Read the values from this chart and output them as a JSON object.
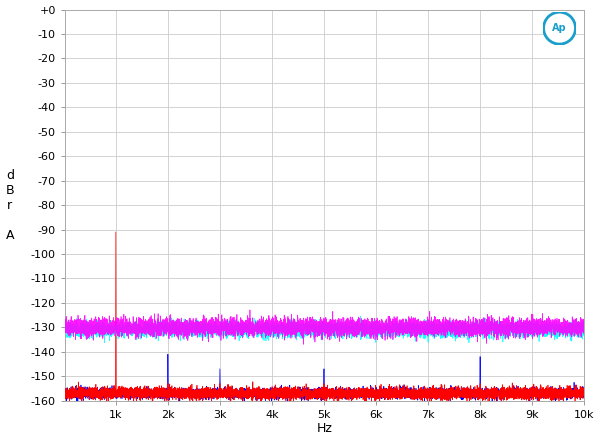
{
  "title": "",
  "xlabel": "Hz",
  "ylabel": "d\nB\nr\n\nA",
  "xlim": [
    20,
    10000
  ],
  "ylim": [
    -160,
    0
  ],
  "yticks": [
    0,
    -10,
    -20,
    -30,
    -40,
    -50,
    -60,
    -70,
    -80,
    -90,
    -100,
    -110,
    -120,
    -130,
    -140,
    -150,
    -160
  ],
  "ytick_labels": [
    "+0",
    "-10",
    "-20",
    "-30",
    "-40",
    "-50",
    "-60",
    "-70",
    "-80",
    "-90",
    "-100",
    "-110",
    "-120",
    "-130",
    "-140",
    "-150",
    "-160"
  ],
  "xtick_positions": [
    1000,
    2000,
    3000,
    4000,
    5000,
    6000,
    7000,
    8000,
    9000,
    10000
  ],
  "xtick_labels": [
    "1k",
    "2k",
    "3k",
    "4k",
    "5k",
    "6k",
    "7k",
    "8k",
    "9k",
    "10k"
  ],
  "background_color": "#ffffff",
  "grid_color": "#cccccc",
  "red_fundamental_freq": 1000,
  "red_fundamental_level": -91,
  "red_noise_floor": -157,
  "red_noise_std": 1.2,
  "blue_spikes": [
    {
      "freq": 2000,
      "level": -141
    },
    {
      "freq": 3000,
      "level": -147
    },
    {
      "freq": 5000,
      "level": -147
    },
    {
      "freq": 8000,
      "level": -142
    }
  ],
  "blue_noise_floor": -157,
  "blue_noise_std": 1.0,
  "magenta_noise_level": -130,
  "magenta_noise_std": 1.8,
  "cyan_noise_level": -131,
  "cyan_noise_std": 1.5,
  "noise_floor_color": "#ff00ff",
  "cyan_color": "#00ffff",
  "red_color": "#ff0000",
  "blue_color": "#0000ff",
  "ap_logo_color": "#1a9ecc"
}
